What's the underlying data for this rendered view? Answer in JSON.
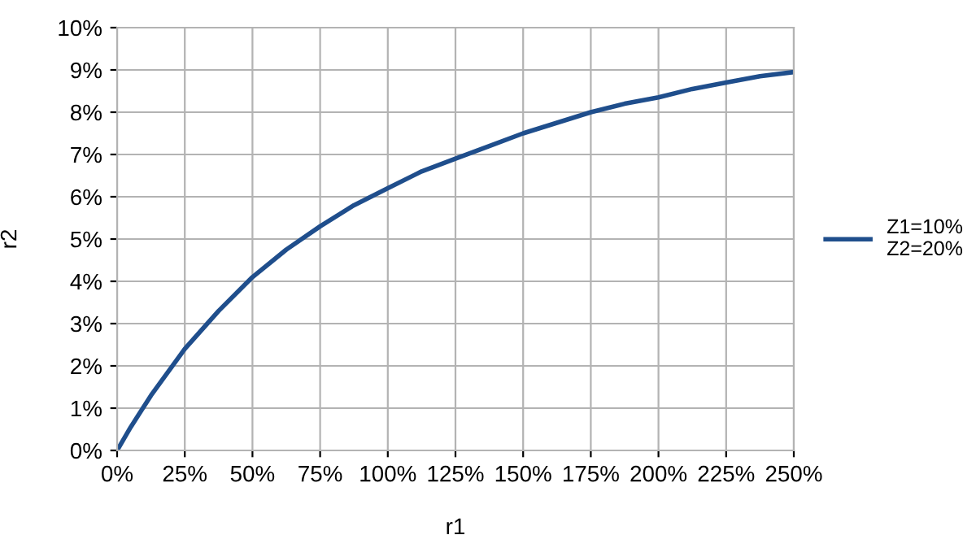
{
  "chart_data": {
    "type": "line",
    "xlabel": "r1",
    "ylabel": "r2",
    "x": [
      0,
      5,
      12.5,
      25,
      37.5,
      50,
      62.5,
      75,
      87.5,
      100,
      112.5,
      125,
      137.5,
      150,
      162.5,
      175,
      187.5,
      200,
      212.5,
      225,
      237.5,
      250
    ],
    "series": [
      {
        "name": "Z1=10%\nZ2=20%",
        "color": "#1f4e8c",
        "values": [
          0,
          0.55,
          1.3,
          2.4,
          3.3,
          4.1,
          4.75,
          5.3,
          5.8,
          6.2,
          6.6,
          6.9,
          7.2,
          7.5,
          7.75,
          8.0,
          8.2,
          8.35,
          8.55,
          8.7,
          8.85,
          8.95
        ]
      }
    ],
    "xlim": [
      0,
      250
    ],
    "ylim": [
      0,
      10
    ],
    "xticks": [
      {
        "value": 0,
        "label": "0%"
      },
      {
        "value": 25,
        "label": "25%"
      },
      {
        "value": 50,
        "label": "50%"
      },
      {
        "value": 75,
        "label": "75%"
      },
      {
        "value": 100,
        "label": "100%"
      },
      {
        "value": 125,
        "label": "125%"
      },
      {
        "value": 150,
        "label": "150%"
      },
      {
        "value": 175,
        "label": "175%"
      },
      {
        "value": 200,
        "label": "200%"
      },
      {
        "value": 225,
        "label": "225%"
      },
      {
        "value": 250,
        "label": "250%"
      }
    ],
    "yticks": [
      {
        "value": 0,
        "label": "0%"
      },
      {
        "value": 1,
        "label": "1%"
      },
      {
        "value": 2,
        "label": "2%"
      },
      {
        "value": 3,
        "label": "3%"
      },
      {
        "value": 4,
        "label": "4%"
      },
      {
        "value": 5,
        "label": "5%"
      },
      {
        "value": 6,
        "label": "6%"
      },
      {
        "value": 7,
        "label": "7%"
      },
      {
        "value": 8,
        "label": "8%"
      },
      {
        "value": 9,
        "label": "9%"
      },
      {
        "value": 10,
        "label": "10%"
      }
    ],
    "grid": true,
    "legend": "right",
    "marker": "none",
    "line_style": "solid"
  }
}
